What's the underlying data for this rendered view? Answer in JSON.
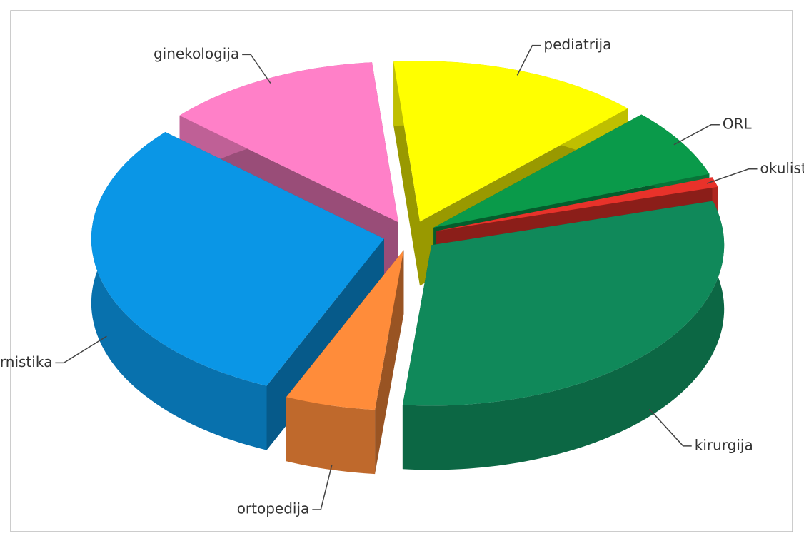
{
  "chart_data": {
    "type": "pie",
    "categories": [
      "pediatrija",
      "ORL",
      "okulistika",
      "kirurgija",
      "ortopedija",
      "internistika",
      "ginekologija"
    ],
    "values": [
      14,
      7,
      1,
      31,
      5,
      30,
      12
    ],
    "colors": [
      "#ffff00",
      "#0a9a4a",
      "#e8322a",
      "#10895a",
      "#ff8c3a",
      "#0a96e6",
      "#ff80c8"
    ]
  }
}
